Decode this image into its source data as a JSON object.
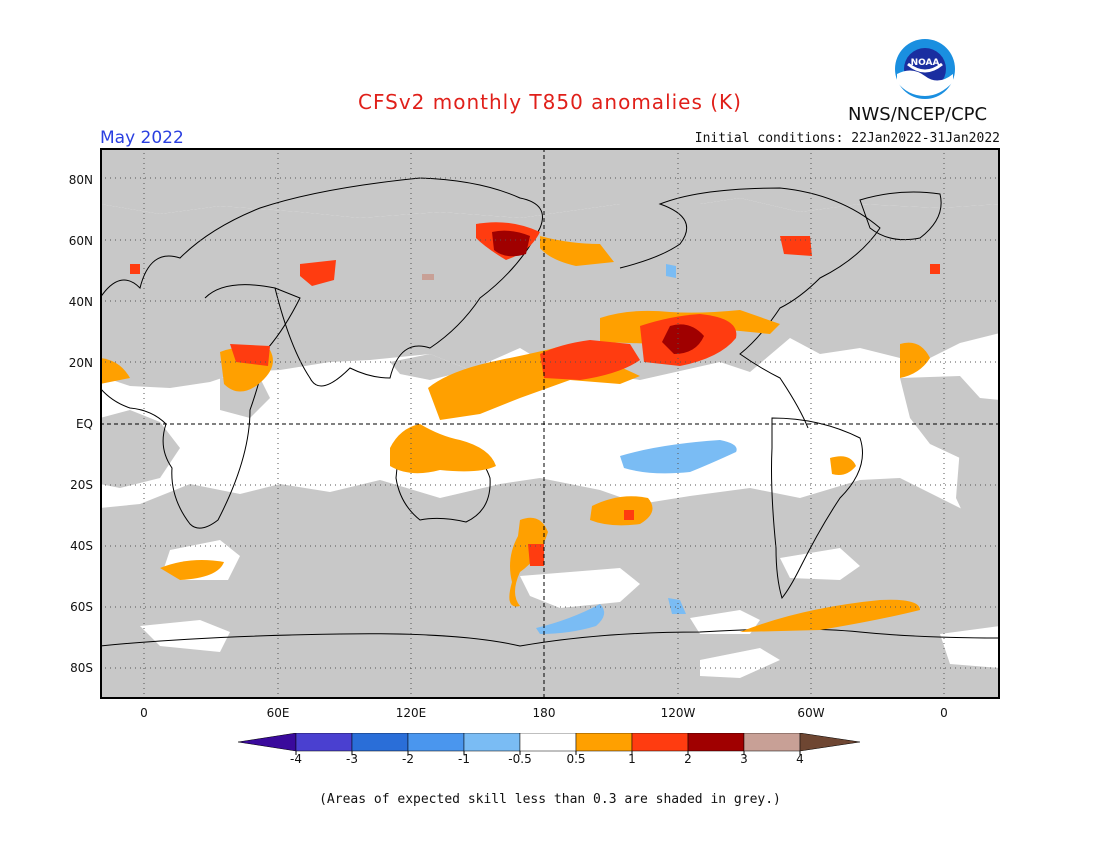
{
  "title": "CFSv2 monthly T850 anomalies (K)",
  "valid_month": "May 2022",
  "initial_conditions": "Initial conditions: 22Jan2022-31Jan2022",
  "agency": "NWS/NCEP/CPC",
  "logo_text": "NOAA",
  "footnote": "(Areas of expected skill less than 0.3 are shaded in grey.)",
  "axes": {
    "lat_labels": [
      "80N",
      "60N",
      "40N",
      "20N",
      "EQ",
      "20S",
      "40S",
      "60S",
      "80S"
    ],
    "lon_labels": [
      "0",
      "60E",
      "120E",
      "180",
      "120W",
      "60W",
      "0"
    ]
  },
  "colors": {
    "no_skill_grey": "#c8c8c8",
    "land_outline": "#000000",
    "title_red": "#e0201a",
    "month_blue": "#2a3fe0"
  },
  "legend": {
    "labels": [
      "-4",
      "-3",
      "-2",
      "-1",
      "-0.5",
      "0.5",
      "1",
      "2",
      "3",
      "4"
    ],
    "bins": [
      {
        "range": "< -4",
        "color": "#3a0a9c"
      },
      {
        "range": "-4 to -3",
        "color": "#4a40d0"
      },
      {
        "range": "-3 to -2",
        "color": "#2a6ed8"
      },
      {
        "range": "-2 to -1",
        "color": "#4a96ee"
      },
      {
        "range": "-1 to -0.5",
        "color": "#7abcf4"
      },
      {
        "range": "-0.5 to 0.5",
        "color": "#ffffff"
      },
      {
        "range": "0.5 to 1",
        "color": "#ffa000"
      },
      {
        "range": "1 to 2",
        "color": "#ff3c10"
      },
      {
        "range": "2 to 3",
        "color": "#a00000"
      },
      {
        "range": "3 to 4",
        "color": "#c8a096"
      },
      {
        "range": "> 4",
        "color": "#6e4632"
      }
    ]
  }
}
